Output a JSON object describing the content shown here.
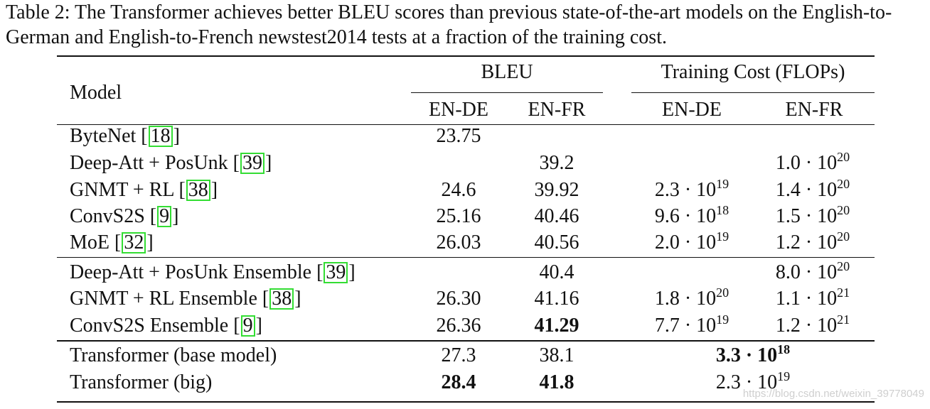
{
  "caption": "Table 2: The Transformer achieves better BLEU scores than previous state-of-the-art models on the English-to-German and English-to-French newstest2014 tests at a fraction of the training cost.",
  "header": {
    "model": "Model",
    "bleu": "BLEU",
    "cost": "Training Cost (FLOPs)",
    "sub": [
      "EN-DE",
      "EN-FR",
      "EN-DE",
      "EN-FR"
    ]
  },
  "groups": [
    {
      "rows": [
        {
          "name": "ByteNet",
          "ref": "18",
          "bleu_de": "23.75",
          "bleu_fr": "",
          "cost_de": null,
          "cost_fr": null
        },
        {
          "name": "Deep-Att + PosUnk",
          "ref": "39",
          "bleu_de": "",
          "bleu_fr": "39.2",
          "cost_de": null,
          "cost_fr": {
            "m": "1.0",
            "e": "20"
          }
        },
        {
          "name": "GNMT + RL",
          "ref": "38",
          "bleu_de": "24.6",
          "bleu_fr": "39.92",
          "cost_de": {
            "m": "2.3",
            "e": "19"
          },
          "cost_fr": {
            "m": "1.4",
            "e": "20"
          }
        },
        {
          "name": "ConvS2S",
          "ref": "9",
          "bleu_de": "25.16",
          "bleu_fr": "40.46",
          "cost_de": {
            "m": "9.6",
            "e": "18"
          },
          "cost_fr": {
            "m": "1.5",
            "e": "20"
          }
        },
        {
          "name": "MoE",
          "ref": "32",
          "bleu_de": "26.03",
          "bleu_fr": "40.56",
          "cost_de": {
            "m": "2.0",
            "e": "19"
          },
          "cost_fr": {
            "m": "1.2",
            "e": "20"
          }
        }
      ]
    },
    {
      "rows": [
        {
          "name": "Deep-Att + PosUnk Ensemble",
          "ref": "39",
          "bleu_de": "",
          "bleu_fr": "40.4",
          "cost_de": null,
          "cost_fr": {
            "m": "8.0",
            "e": "20"
          }
        },
        {
          "name": "GNMT + RL Ensemble",
          "ref": "38",
          "bleu_de": "26.30",
          "bleu_fr": "41.16",
          "cost_de": {
            "m": "1.8",
            "e": "20"
          },
          "cost_fr": {
            "m": "1.1",
            "e": "21"
          }
        },
        {
          "name": "ConvS2S Ensemble",
          "ref": "9",
          "bleu_de": "26.36",
          "bleu_fr": "41.29",
          "bold_fr": true,
          "cost_de": {
            "m": "7.7",
            "e": "19"
          },
          "cost_fr": {
            "m": "1.2",
            "e": "21"
          }
        }
      ]
    },
    {
      "rows": [
        {
          "name": "Transformer (base model)",
          "bleu_de": "27.3",
          "bleu_fr": "38.1",
          "cost_merged": {
            "m": "3.3",
            "e": "18"
          },
          "bold_cost": true
        },
        {
          "name": "Transformer (big)",
          "bleu_de": "28.4",
          "bleu_fr": "41.8",
          "bold_de": true,
          "bold_fr": true,
          "cost_merged": {
            "m": "2.3",
            "e": "19"
          }
        }
      ]
    }
  ],
  "watermark": "https://blog.csdn.net/weixin_39778049"
}
